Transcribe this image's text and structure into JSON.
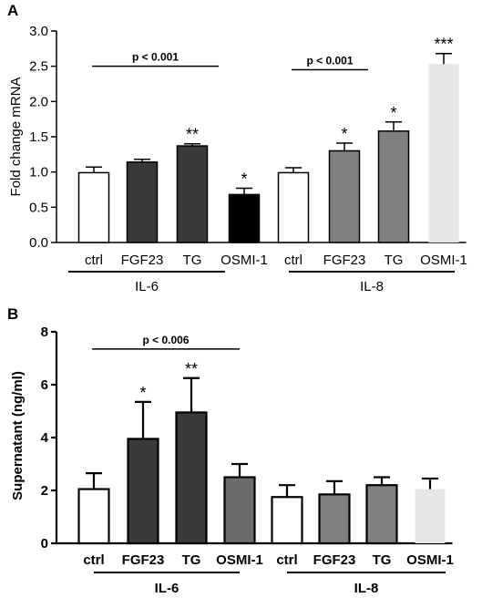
{
  "chart_data": [
    {
      "panel": "A",
      "type": "bar",
      "ylabel": "Fold change mRNA",
      "ylim": [
        0,
        3.0
      ],
      "yticks": [
        "0.0",
        "0.5",
        "1.0",
        "1.5",
        "2.0",
        "2.5",
        "3.0"
      ],
      "categories": [
        "ctrl",
        "FGF23",
        "TG",
        "OSMI-1",
        "ctrl",
        "FGF23",
        "TG",
        "OSMI-1"
      ],
      "values": [
        0.99,
        1.14,
        1.37,
        0.68,
        0.99,
        1.3,
        1.58,
        2.53
      ],
      "errors": [
        0.08,
        0.04,
        0.03,
        0.09,
        0.07,
        0.11,
        0.13,
        0.15
      ],
      "significance": [
        "",
        "",
        "**",
        "*",
        "",
        "*",
        "*",
        "***"
      ],
      "bar_colors": [
        "#ffffff",
        "#3a3a3a",
        "#3a3a3a",
        "#000000",
        "#ffffff",
        "#808080",
        "#808080",
        "#e6e6e6"
      ],
      "groups": [
        {
          "label": "IL-6",
          "range": [
            0,
            3
          ]
        },
        {
          "label": "IL-8",
          "range": [
            4,
            7
          ]
        }
      ],
      "brackets": [
        {
          "label": "p < 0.001",
          "from": 0,
          "to": 3,
          "y": 2.5
        },
        {
          "label": "p < 0.001",
          "from": 4,
          "to": 6,
          "y": 2.45
        }
      ]
    },
    {
      "panel": "B",
      "type": "bar",
      "ylabel": "Supernatant (ng/ml)",
      "ylim": [
        0,
        8
      ],
      "yticks": [
        "0",
        "2",
        "4",
        "6",
        "8"
      ],
      "categories": [
        "ctrl",
        "FGF23",
        "TG",
        "OSMI-1",
        "ctrl",
        "FGF23",
        "TG",
        "OSMI-1"
      ],
      "values": [
        2.05,
        3.95,
        4.95,
        2.5,
        1.75,
        1.85,
        2.2,
        2.05
      ],
      "errors": [
        0.6,
        1.4,
        1.3,
        0.5,
        0.45,
        0.5,
        0.3,
        0.4
      ],
      "significance": [
        "",
        "*",
        "**",
        "",
        "",
        "",
        "",
        ""
      ],
      "bar_colors": [
        "#ffffff",
        "#3a3a3a",
        "#3a3a3a",
        "#6b6b6b",
        "#ffffff",
        "#808080",
        "#808080",
        "#e6e6e6"
      ],
      "groups": [
        {
          "label": "IL-6",
          "range": [
            0,
            3
          ]
        },
        {
          "label": "IL-8",
          "range": [
            4,
            7
          ]
        }
      ],
      "brackets": [
        {
          "label": "p < 0.006",
          "from": 0,
          "to": 3,
          "y": 7.35
        }
      ]
    }
  ]
}
